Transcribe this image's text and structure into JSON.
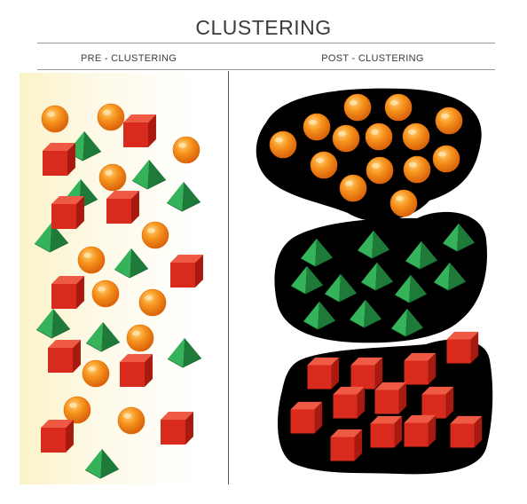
{
  "title": "CLUSTERING",
  "columns": {
    "pre": "PRE - CLUSTERING",
    "post": "POST - CLUSTERING"
  },
  "colors": {
    "sphere": "#f7941d",
    "sphere_dark": "#e06c0c",
    "pyramid": "#2a9d4b",
    "pyramid_dark": "#1d7a38",
    "cube": "#d92b1d",
    "cube_dark": "#a81a10"
  },
  "shape_types": [
    "orange-sphere",
    "green-pyramid",
    "red-cube"
  ],
  "clusters": [
    "sphere-cluster",
    "pyramid-cluster",
    "cube-cluster"
  ]
}
